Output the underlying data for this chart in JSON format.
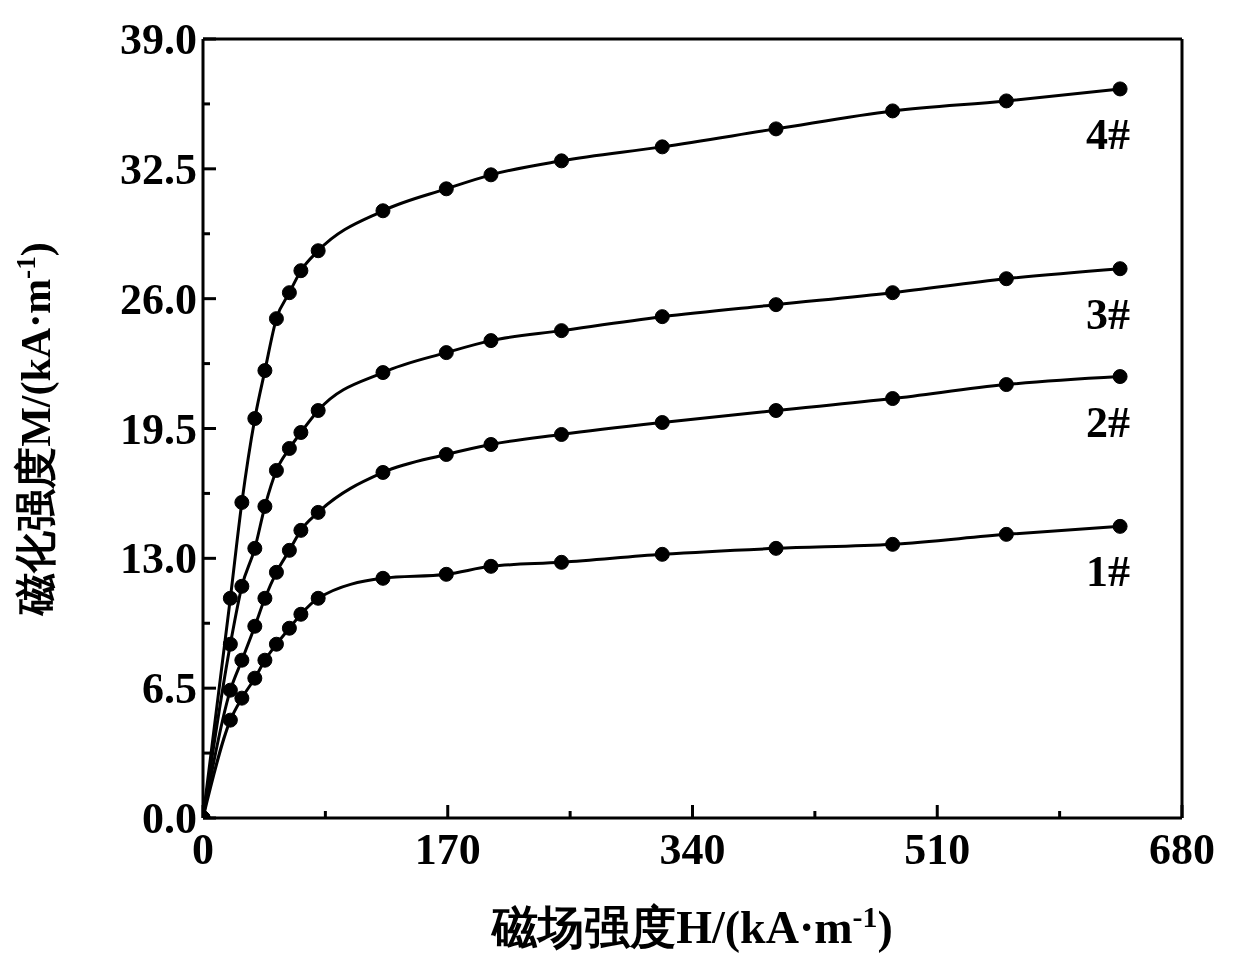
{
  "chart_data": {
    "type": "line",
    "xlabel": "磁场强度H/(kA·m$^{-1}$)",
    "ylabel": "磁化强度M/(kA·m$^{-1}$)",
    "x": [
      0,
      19,
      27,
      36,
      43,
      51,
      60,
      68,
      80,
      125,
      169,
      200,
      249,
      319,
      398,
      479,
      558,
      637
    ],
    "series": [
      {
        "name": "1#",
        "color": "#000000",
        "values": [
          0,
          4.9,
          6.0,
          7.0,
          7.9,
          8.7,
          9.5,
          10.2,
          11.0,
          12.0,
          12.2,
          12.6,
          12.8,
          13.2,
          13.5,
          13.7,
          14.2,
          14.6
        ]
      },
      {
        "name": "2#",
        "color": "#000000",
        "values": [
          0,
          6.4,
          7.9,
          9.6,
          11.0,
          12.3,
          13.4,
          14.4,
          15.3,
          17.3,
          18.2,
          18.7,
          19.2,
          19.8,
          20.4,
          21.0,
          21.7,
          22.1
        ]
      },
      {
        "name": "3#",
        "color": "#000000",
        "values": [
          0,
          8.7,
          11.6,
          13.5,
          15.6,
          17.4,
          18.5,
          19.3,
          20.4,
          22.3,
          23.3,
          23.9,
          24.4,
          25.1,
          25.7,
          26.3,
          27.0,
          27.5
        ]
      },
      {
        "name": "4#",
        "color": "#000000",
        "values": [
          0,
          11.0,
          15.8,
          20.0,
          22.4,
          25.0,
          26.3,
          27.4,
          28.4,
          30.4,
          31.5,
          32.2,
          32.9,
          33.6,
          34.5,
          35.4,
          35.9,
          36.5
        ]
      }
    ],
    "xlim": [
      0,
      680
    ],
    "xticks": [
      0,
      {
        "value": 85,
        "label": null
      },
      170,
      {
        "value": 255,
        "label": null
      },
      340,
      {
        "value": 425,
        "label": null
      },
      510,
      {
        "value": 595,
        "label": null
      },
      680
    ],
    "ylim": [
      0,
      39
    ],
    "yticks": [
      {
        "value": 0,
        "label": "0.0"
      },
      {
        "value": 3.25,
        "label": null
      },
      {
        "value": 6.5,
        "label": "6.5"
      },
      {
        "value": 9.75,
        "label": null
      },
      {
        "value": 13,
        "label": "13.0"
      },
      {
        "value": 16.25,
        "label": null
      },
      {
        "value": 19.5,
        "label": "19.5"
      },
      {
        "value": 22.75,
        "label": null
      },
      {
        "value": 26,
        "label": "26.0"
      },
      {
        "value": 29.25,
        "label": null
      },
      {
        "value": 32.5,
        "label": "32.5"
      },
      {
        "value": 35.75,
        "label": null
      },
      {
        "value": 39,
        "label": "39.0"
      }
    ],
    "grid": false,
    "marker": "circle",
    "line_style": "solid"
  }
}
